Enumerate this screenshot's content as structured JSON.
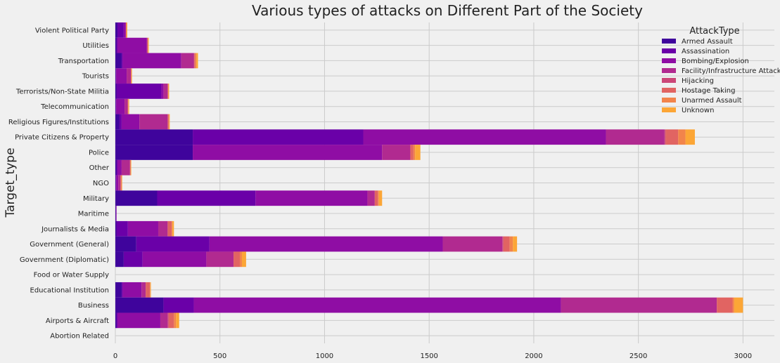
{
  "chart_data": {
    "type": "bar",
    "orientation": "horizontal",
    "stacked": true,
    "title": "Various types of attacks on Different Part of the Society",
    "xlabel": "",
    "ylabel": "Target_type",
    "xlim": [
      0,
      3150
    ],
    "xticks": [
      0,
      500,
      1000,
      1500,
      2000,
      2500,
      3000
    ],
    "grid": true,
    "legend": {
      "title": "AttackType",
      "position": "top-right"
    },
    "categories": [
      "Violent Political Party",
      "Utilities",
      "Transportation",
      "Tourists",
      "Terrorists/Non-State Militia",
      "Telecommunication",
      "Religious Figures/Institutions",
      "Private Citizens & Property",
      "Police",
      "Other",
      "NGO",
      "Military",
      "Maritime",
      "Journalists & Media",
      "Government (General)",
      "Government (Diplomatic)",
      "Food or Water Supply",
      "Educational Institution",
      "Business",
      "Airports & Aircraft",
      "Abortion Related"
    ],
    "series": [
      {
        "name": "Armed Assault",
        "color": "#3f049c",
        "values": [
          10,
          5,
          30,
          2,
          5,
          2,
          20,
          370,
          370,
          5,
          2,
          200,
          2,
          5,
          100,
          40,
          0,
          30,
          230,
          5,
          0
        ]
      },
      {
        "name": "Assassination",
        "color": "#6a00a8",
        "values": [
          30,
          5,
          5,
          2,
          215,
          2,
          10,
          815,
          0,
          5,
          2,
          470,
          2,
          55,
          350,
          90,
          0,
          5,
          145,
          5,
          0
        ]
      },
      {
        "name": "Bombing/Explosion",
        "color": "#8f0da4",
        "values": [
          10,
          140,
          280,
          50,
          10,
          40,
          85,
          1160,
          905,
          20,
          10,
          535,
          2,
          145,
          1115,
          305,
          0,
          90,
          1755,
          205,
          0
        ]
      },
      {
        "name": "Facility/Infrastructure Attack",
        "color": "#b12a90",
        "values": [
          0,
          3,
          60,
          20,
          20,
          15,
          135,
          280,
          135,
          40,
          10,
          35,
          0,
          45,
          285,
          130,
          0,
          20,
          745,
          35,
          0
        ]
      },
      {
        "name": "Hijacking",
        "color": "#cc4778",
        "values": [
          0,
          0,
          2,
          0,
          0,
          0,
          0,
          5,
          0,
          0,
          0,
          0,
          0,
          0,
          5,
          0,
          0,
          0,
          0,
          5,
          0
        ]
      },
      {
        "name": "Hostage Taking",
        "color": "#e16462",
        "values": [
          2,
          2,
          5,
          2,
          2,
          2,
          5,
          60,
          15,
          2,
          5,
          15,
          0,
          20,
          30,
          30,
          0,
          20,
          75,
          25,
          0
        ]
      },
      {
        "name": "Unarmed Assault",
        "color": "#f2844b",
        "values": [
          2,
          2,
          5,
          2,
          2,
          2,
          2,
          35,
          8,
          2,
          2,
          5,
          0,
          2,
          15,
          10,
          0,
          2,
          8,
          10,
          0
        ]
      },
      {
        "name": "Unknown",
        "color": "#fca636",
        "values": [
          3,
          3,
          8,
          2,
          3,
          3,
          3,
          45,
          25,
          2,
          2,
          15,
          0,
          8,
          20,
          20,
          0,
          3,
          42,
          15,
          0
        ]
      }
    ]
  }
}
